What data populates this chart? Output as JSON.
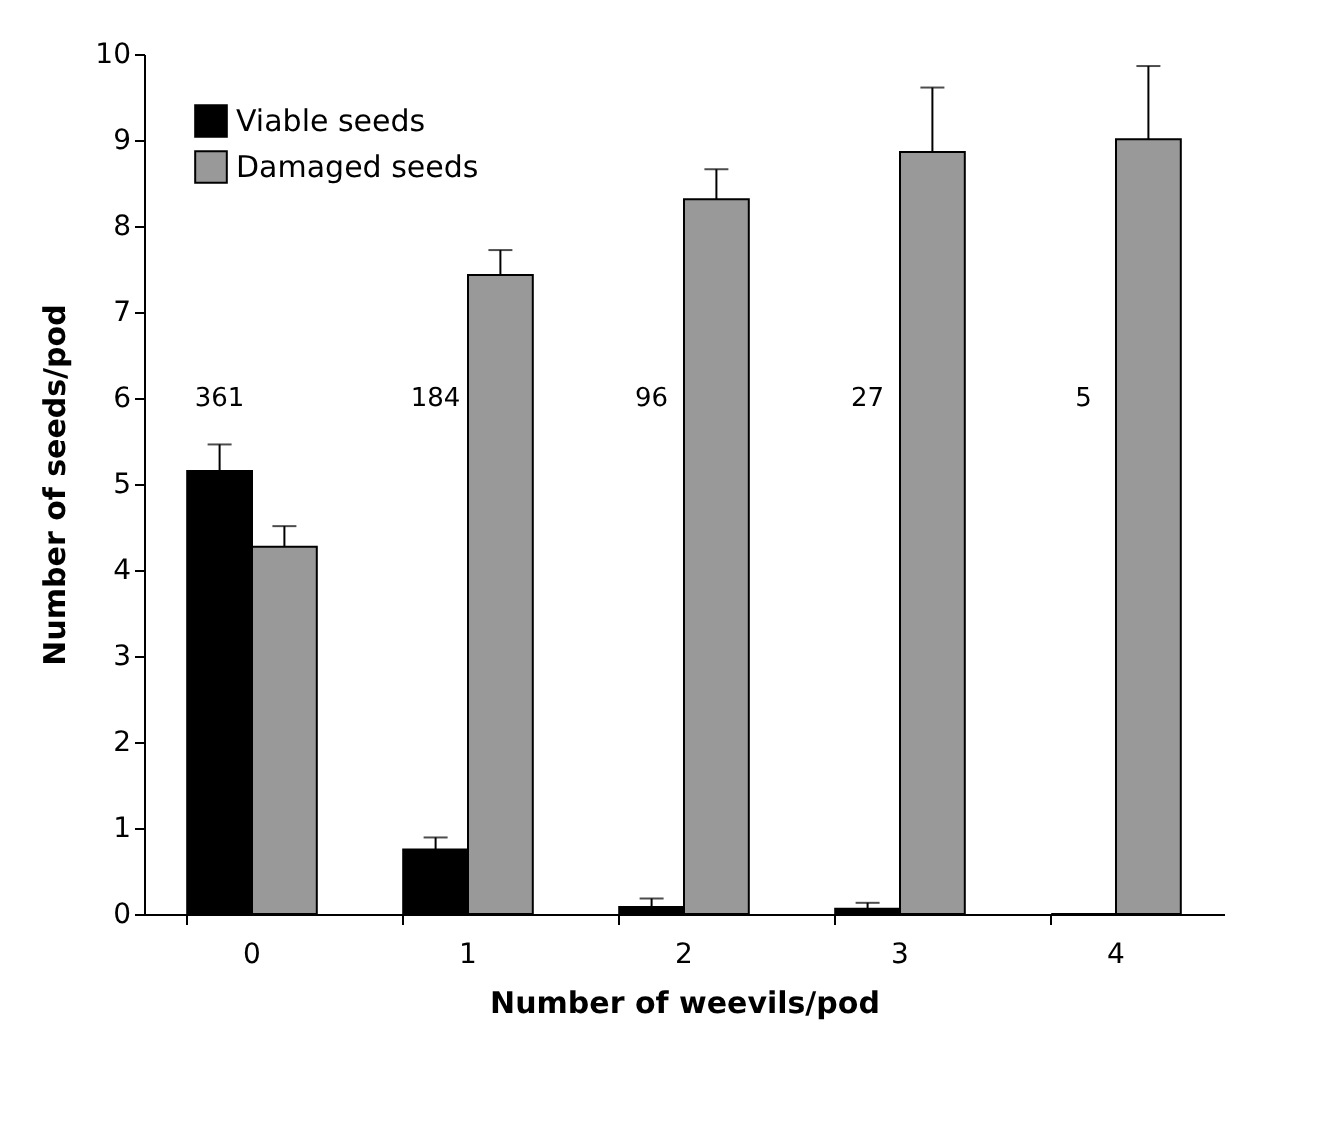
{
  "chart_data": {
    "type": "bar",
    "xlabel": "Number of weevils/pod",
    "ylabel": "Number of seeds/pod",
    "categories": [
      "0",
      "1",
      "2",
      "3",
      "4"
    ],
    "series": [
      {
        "name": "Viable seeds",
        "color": "#000000",
        "values": [
          5.15,
          0.75,
          0.08,
          0.06,
          0
        ],
        "errors": [
          [
            5.15,
            5.46
          ],
          [
            0.75,
            0.89
          ],
          [
            0.08,
            0.18
          ],
          [
            0.06,
            0.13
          ],
          null
        ]
      },
      {
        "name": "Damaged seeds",
        "color": "#999999",
        "values": [
          4.27,
          7.43,
          8.31,
          8.86,
          9.01
        ],
        "errors": [
          [
            4.27,
            4.51
          ],
          [
            7.43,
            7.72
          ],
          [
            8.31,
            8.66
          ],
          [
            8.86,
            9.61
          ],
          [
            9.01,
            9.86
          ]
        ]
      }
    ],
    "annotations": [
      "361",
      "184",
      "96",
      "27",
      "5"
    ],
    "ylim": [
      0,
      10
    ],
    "yticks": [
      0,
      1,
      2,
      3,
      4,
      5,
      6,
      7,
      8,
      9,
      10
    ],
    "grid": false,
    "legend": "top left"
  }
}
